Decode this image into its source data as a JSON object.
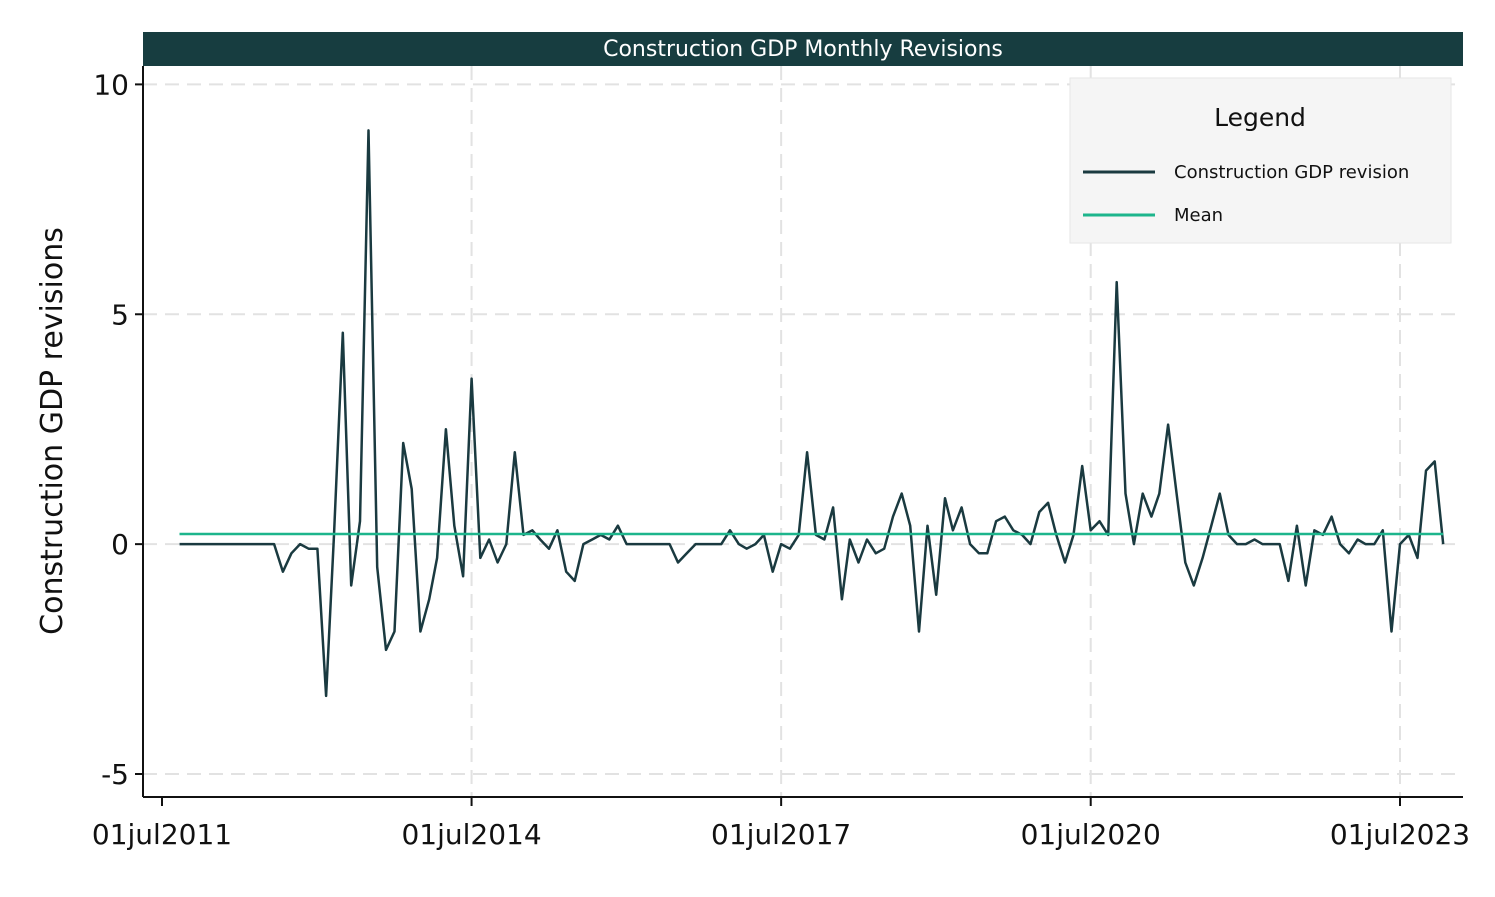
{
  "chart_data": {
    "type": "line",
    "title": "Construction GDP Monthly Revisions",
    "xlabel": "",
    "ylabel": "Construction GDP revisions",
    "ylim": [
      -5.5,
      10.4
    ],
    "yticks": [
      -5,
      0,
      5,
      10
    ],
    "ytick_labels": [
      "-5",
      "0",
      "5",
      "10"
    ],
    "xticks": [
      "2011-07-01",
      "2014-07-01",
      "2017-07-01",
      "2020-07-01",
      "2023-07-01"
    ],
    "xtick_labels": [
      "01jul2011",
      "01jul2014",
      "01jul2017",
      "01jul2020",
      "01jul2023"
    ],
    "grid": true,
    "legend": {
      "title": "Legend",
      "placement": "top-right",
      "entries": [
        {
          "label": "Construction GDP revision",
          "color": "#1a3a40"
        },
        {
          "label": "Mean",
          "color": "#1db58c"
        }
      ]
    },
    "series": [
      {
        "name": "Construction GDP revision",
        "color": "#1a3a40",
        "points": [
          [
            "2011-09-01",
            0
          ],
          [
            "2011-10-01",
            0
          ],
          [
            "2011-11-01",
            0
          ],
          [
            "2011-12-01",
            0
          ],
          [
            "2012-01-01",
            0
          ],
          [
            "2012-02-01",
            0
          ],
          [
            "2012-03-01",
            0
          ],
          [
            "2012-04-01",
            0
          ],
          [
            "2012-05-01",
            0
          ],
          [
            "2012-06-01",
            0
          ],
          [
            "2012-07-01",
            0
          ],
          [
            "2012-08-01",
            0
          ],
          [
            "2012-09-01",
            -0.6
          ],
          [
            "2012-10-01",
            -0.2
          ],
          [
            "2012-11-01",
            0
          ],
          [
            "2012-12-01",
            -0.1
          ],
          [
            "2013-01-01",
            -0.1
          ],
          [
            "2013-02-01",
            -3.3
          ],
          [
            "2013-03-01",
            0.2
          ],
          [
            "2013-04-01",
            4.6
          ],
          [
            "2013-05-01",
            -0.9
          ],
          [
            "2013-06-01",
            0.5
          ],
          [
            "2013-07-01",
            9.0
          ],
          [
            "2013-08-01",
            -0.5
          ],
          [
            "2013-09-01",
            -2.3
          ],
          [
            "2013-10-01",
            -1.9
          ],
          [
            "2013-11-01",
            2.2
          ],
          [
            "2013-12-01",
            1.2
          ],
          [
            "2014-01-01",
            -1.9
          ],
          [
            "2014-02-01",
            -1.2
          ],
          [
            "2014-03-01",
            -0.3
          ],
          [
            "2014-04-01",
            2.5
          ],
          [
            "2014-05-01",
            0.4
          ],
          [
            "2014-06-01",
            -0.7
          ],
          [
            "2014-07-01",
            3.6
          ],
          [
            "2014-08-01",
            -0.3
          ],
          [
            "2014-09-01",
            0.1
          ],
          [
            "2014-10-01",
            -0.4
          ],
          [
            "2014-11-01",
            0
          ],
          [
            "2014-12-01",
            2.0
          ],
          [
            "2015-01-01",
            0.2
          ],
          [
            "2015-02-01",
            0.3
          ],
          [
            "2015-03-01",
            0.1
          ],
          [
            "2015-04-01",
            -0.1
          ],
          [
            "2015-05-01",
            0.3
          ],
          [
            "2015-06-01",
            -0.6
          ],
          [
            "2015-07-01",
            -0.8
          ],
          [
            "2015-08-01",
            0
          ],
          [
            "2015-09-01",
            0.1
          ],
          [
            "2015-10-01",
            0.2
          ],
          [
            "2015-11-01",
            0.1
          ],
          [
            "2015-12-01",
            0.4
          ],
          [
            "2016-01-01",
            0
          ],
          [
            "2016-02-01",
            0
          ],
          [
            "2016-03-01",
            0
          ],
          [
            "2016-04-01",
            0
          ],
          [
            "2016-05-01",
            0
          ],
          [
            "2016-06-01",
            0
          ],
          [
            "2016-07-01",
            -0.4
          ],
          [
            "2016-08-01",
            -0.2
          ],
          [
            "2016-09-01",
            0
          ],
          [
            "2016-10-01",
            0
          ],
          [
            "2016-11-01",
            0
          ],
          [
            "2016-12-01",
            0
          ],
          [
            "2017-01-01",
            0.3
          ],
          [
            "2017-02-01",
            0
          ],
          [
            "2017-03-01",
            -0.1
          ],
          [
            "2017-04-01",
            0
          ],
          [
            "2017-05-01",
            0.2
          ],
          [
            "2017-06-01",
            -0.6
          ],
          [
            "2017-07-01",
            0
          ],
          [
            "2017-08-01",
            -0.1
          ],
          [
            "2017-09-01",
            0.2
          ],
          [
            "2017-10-01",
            2.0
          ],
          [
            "2017-11-01",
            0.2
          ],
          [
            "2017-12-01",
            0.1
          ],
          [
            "2018-01-01",
            0.8
          ],
          [
            "2018-02-01",
            -1.2
          ],
          [
            "2018-03-01",
            0.1
          ],
          [
            "2018-04-01",
            -0.4
          ],
          [
            "2018-05-01",
            0.1
          ],
          [
            "2018-06-01",
            -0.2
          ],
          [
            "2018-07-01",
            -0.1
          ],
          [
            "2018-08-01",
            0.6
          ],
          [
            "2018-09-01",
            1.1
          ],
          [
            "2018-10-01",
            0.4
          ],
          [
            "2018-11-01",
            -1.9
          ],
          [
            "2018-12-01",
            0.4
          ],
          [
            "2019-01-01",
            -1.1
          ],
          [
            "2019-02-01",
            1.0
          ],
          [
            "2019-03-01",
            0.3
          ],
          [
            "2019-04-01",
            0.8
          ],
          [
            "2019-05-01",
            0
          ],
          [
            "2019-06-01",
            -0.2
          ],
          [
            "2019-07-01",
            -0.2
          ],
          [
            "2019-08-01",
            0.5
          ],
          [
            "2019-09-01",
            0.6
          ],
          [
            "2019-10-01",
            0.3
          ],
          [
            "2019-11-01",
            0.2
          ],
          [
            "2019-12-01",
            0
          ],
          [
            "2020-01-01",
            0.7
          ],
          [
            "2020-02-01",
            0.9
          ],
          [
            "2020-03-01",
            0.2
          ],
          [
            "2020-04-01",
            -0.4
          ],
          [
            "2020-05-01",
            0.2
          ],
          [
            "2020-06-01",
            1.7
          ],
          [
            "2020-07-01",
            0.3
          ],
          [
            "2020-08-01",
            0.5
          ],
          [
            "2020-09-01",
            0.2
          ],
          [
            "2020-10-01",
            5.7
          ],
          [
            "2020-11-01",
            1.1
          ],
          [
            "2020-12-01",
            0
          ],
          [
            "2021-01-01",
            1.1
          ],
          [
            "2021-02-01",
            0.6
          ],
          [
            "2021-03-01",
            1.1
          ],
          [
            "2021-04-01",
            2.6
          ],
          [
            "2021-05-01",
            1.1
          ],
          [
            "2021-06-01",
            -0.4
          ],
          [
            "2021-07-01",
            -0.9
          ],
          [
            "2021-08-01",
            -0.3
          ],
          [
            "2021-09-01",
            0.4
          ],
          [
            "2021-10-01",
            1.1
          ],
          [
            "2021-11-01",
            0.2
          ],
          [
            "2021-12-01",
            0
          ],
          [
            "2022-01-01",
            0
          ],
          [
            "2022-02-01",
            0.1
          ],
          [
            "2022-03-01",
            0
          ],
          [
            "2022-04-01",
            0
          ],
          [
            "2022-05-01",
            0
          ],
          [
            "2022-06-01",
            -0.8
          ],
          [
            "2022-07-01",
            0.4
          ],
          [
            "2022-08-01",
            -0.9
          ],
          [
            "2022-09-01",
            0.3
          ],
          [
            "2022-10-01",
            0.2
          ],
          [
            "2022-11-01",
            0.6
          ],
          [
            "2022-12-01",
            0
          ],
          [
            "2023-01-01",
            -0.2
          ],
          [
            "2023-02-01",
            0.1
          ],
          [
            "2023-03-01",
            0
          ],
          [
            "2023-04-01",
            0
          ],
          [
            "2023-05-01",
            0.3
          ],
          [
            "2023-06-01",
            -1.9
          ],
          [
            "2023-07-01",
            0
          ],
          [
            "2023-08-01",
            0.2
          ],
          [
            "2023-09-01",
            -0.3
          ],
          [
            "2023-10-01",
            1.6
          ],
          [
            "2023-11-01",
            1.8
          ],
          [
            "2023-12-01",
            0
          ]
        ]
      },
      {
        "name": "Mean",
        "color": "#1db58c",
        "points": [
          [
            "2011-09-01",
            0.22
          ],
          [
            "2023-12-01",
            0.22
          ]
        ]
      }
    ]
  },
  "style": {
    "title_bar_color": "#173d40",
    "legend_bg_color": "#f5f5f5",
    "axis_color": "#111111",
    "grid_color": "#e2e2e2"
  }
}
